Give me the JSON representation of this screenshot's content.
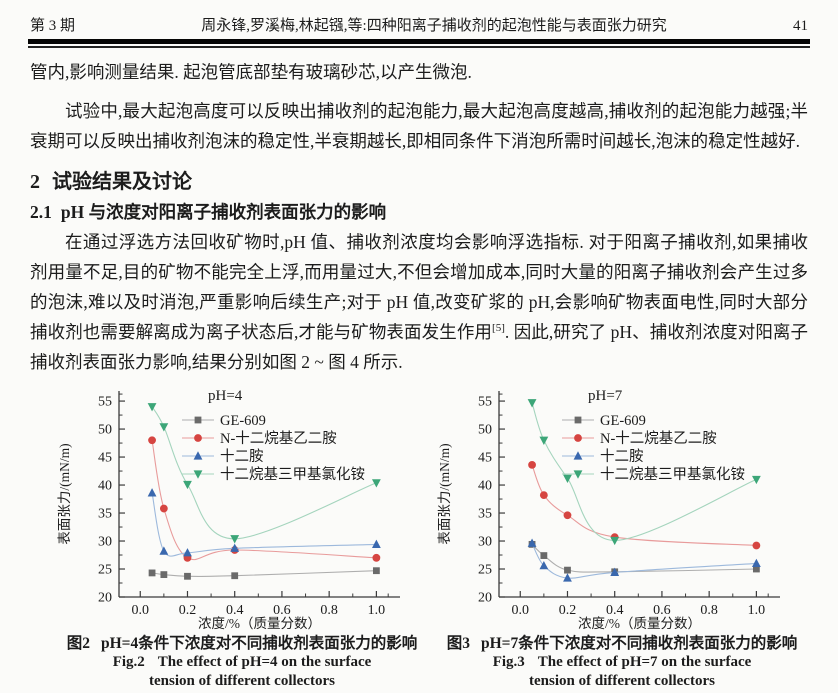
{
  "page": {
    "header": {
      "issue": "第 3 期",
      "running_title": "周永锋,罗溪梅,林起镪,等:四种阳离子捕收剂的起泡性能与表面张力研究",
      "page_number": "41"
    },
    "paragraphs": {
      "p1": "管内,影响测量结果. 起泡管底部垫有玻璃砂芯,以产生微泡.",
      "p2": "试验中,最大起泡高度可以反映出捕收剂的起泡能力,最大起泡高度越高,捕收剂的起泡能力越强;半衰期可以反映出捕收剂泡沫的稳定性,半衰期越长,即相同条件下消泡所需时间越长,泡沫的稳定性越好.",
      "p3a": "在通过浮选方法回收矿物时,pH 值、捕收剂浓度均会影响浮选指标. 对于阳离子捕收剂,如果捕收剂用量不足,目的矿物不能完全上浮,而用量过大,不但会增加成本,同时大量的阳离子捕收剂会产生过多的泡沫,难以及时消泡,严重影响后续生产;对于 pH 值,改变矿浆的 pH,会影响矿物表面电性,同时大部分捕收剂也需要解离成为离子状态后,才能与矿物表面发生作用",
      "p3_ref": "[5]",
      "p3b": ". 因此,研究了 pH、捕收剂浓度对阳离子捕收剂表面张力影响,结果分别如图 2 ~ 图 4 所示."
    },
    "heading2": {
      "num": "2",
      "text": "试验结果及讨论"
    },
    "heading21": {
      "num": "2.1",
      "text": "pH 与浓度对阳离子捕收剂表面张力的影响"
    },
    "figures": [
      {
        "label_zh": "图2",
        "caption_zh": "pH=4条件下浓度对不同捕收剂表面张力的影响",
        "label_en": "Fig.2",
        "caption_en_line1": "The effect of pH=4 on the surface",
        "caption_en_line2": "tension of different collectors"
      },
      {
        "label_zh": "图3",
        "caption_zh": "pH=7条件下浓度对不同捕收剂表面张力的影响",
        "label_en": "Fig.3",
        "caption_en_line1": "The effect of pH=7 on the surface",
        "caption_en_line2": "tension of different collectors"
      }
    ]
  },
  "chart_data": [
    {
      "type": "line",
      "title": "pH=4",
      "xlabel": "浓度/%（质量分数）",
      "ylabel": "表面张力/(mN/m)",
      "x": [
        0.05,
        0.1,
        0.2,
        0.4,
        1.0
      ],
      "xlim": [
        -0.09,
        1.1
      ],
      "ylim": [
        20,
        56.8
      ],
      "xticks": [
        0.0,
        0.2,
        0.4,
        0.6,
        0.8,
        1.0
      ],
      "yticks": [
        20,
        25,
        30,
        35,
        40,
        45,
        50,
        55
      ],
      "xminor": [
        0.1,
        0.3,
        0.5,
        0.7,
        0.9,
        1.05
      ],
      "yminor": [
        22.5,
        27.5,
        32.5,
        37.5,
        42.5,
        47.5,
        52.5,
        56.25
      ],
      "grid": false,
      "legend_position": "top-inside",
      "series": [
        {
          "name": "GE-609",
          "marker": "square",
          "color": "#6a6a6a",
          "line_color": "#aeaeae",
          "values": [
            24.3,
            24.0,
            23.7,
            23.8,
            24.7
          ]
        },
        {
          "name": "N-十二烷基乙二胺",
          "marker": "circle",
          "color": "#d64541",
          "line_color": "#e89b9b",
          "values": [
            48.0,
            35.8,
            27.0,
            28.4,
            27.0
          ]
        },
        {
          "name": "十二胺",
          "marker": "triangle-up",
          "color": "#3a68ae",
          "line_color": "#9db9dc",
          "values": [
            38.6,
            28.2,
            27.9,
            28.7,
            29.4
          ]
        },
        {
          "name": "十二烷基三甲基氯化铵",
          "marker": "triangle-down",
          "color": "#3ca678",
          "line_color": "#a4d4bd",
          "values": [
            54.0,
            50.4,
            40.1,
            30.4,
            40.4
          ]
        }
      ]
    },
    {
      "type": "line",
      "title": "pH=7",
      "xlabel": "浓度/%（质量分数）",
      "ylabel": "表面张力/(mN/m)",
      "x": [
        0.05,
        0.1,
        0.2,
        0.4,
        1.0
      ],
      "xlim": [
        -0.09,
        1.1
      ],
      "ylim": [
        20,
        56.8
      ],
      "xticks": [
        0.0,
        0.2,
        0.4,
        0.6,
        0.8,
        1.0
      ],
      "yticks": [
        20,
        25,
        30,
        35,
        40,
        45,
        50,
        55
      ],
      "xminor": [
        0.1,
        0.3,
        0.5,
        0.7,
        0.9,
        1.05
      ],
      "yminor": [
        22.5,
        27.5,
        32.5,
        37.5,
        42.5,
        47.5,
        52.5,
        56.25
      ],
      "grid": false,
      "legend_position": "top-inside",
      "series": [
        {
          "name": "GE-609",
          "marker": "square",
          "color": "#6a6a6a",
          "line_color": "#aeaeae",
          "values": [
            29.4,
            27.4,
            24.8,
            24.5,
            25.0
          ]
        },
        {
          "name": "N-十二烷基乙二胺",
          "marker": "circle",
          "color": "#d64541",
          "line_color": "#e89b9b",
          "values": [
            43.6,
            38.2,
            34.6,
            30.7,
            29.2
          ]
        },
        {
          "name": "十二胺",
          "marker": "triangle-up",
          "color": "#3a68ae",
          "line_color": "#9db9dc",
          "values": [
            29.6,
            25.6,
            23.4,
            24.4,
            26.0
          ]
        },
        {
          "name": "十二烷基三甲基氯化铵",
          "marker": "triangle-down",
          "color": "#3ca678",
          "line_color": "#a4d4bd",
          "values": [
            54.7,
            48.0,
            41.2,
            30.1,
            41.0
          ]
        }
      ]
    }
  ]
}
